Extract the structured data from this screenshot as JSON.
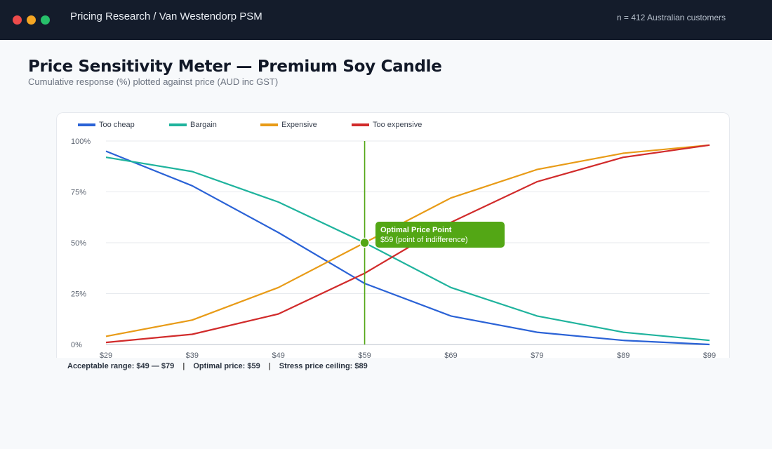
{
  "window": {
    "title": "Pricing Research / Van Westendorp PSM",
    "sample_note": "n = 412 Australian customers"
  },
  "page": {
    "title": "Price Sensitivity Meter — Premium Soy Candle",
    "subtitle": "Cumulative response (%) plotted against price (AUD inc GST)"
  },
  "chart_data": {
    "type": "line",
    "x": [
      29,
      39,
      49,
      59,
      69,
      79,
      89,
      99
    ],
    "x_tick_labels": [
      "$29",
      "$39",
      "$49",
      "$59",
      "$69",
      "$79",
      "$89",
      "$99"
    ],
    "xlim": [
      29,
      99
    ],
    "ylim": [
      0,
      100
    ],
    "y_tick_values": [
      0,
      25,
      50,
      75,
      100
    ],
    "y_tick_labels": [
      "0%",
      "25%",
      "50%",
      "75%",
      "100%"
    ],
    "grid": true,
    "legend_position": "top-left",
    "series": [
      {
        "name": "Too cheap",
        "color": "#2a62d6",
        "values": [
          95,
          78,
          55,
          30,
          14,
          6,
          2,
          0
        ]
      },
      {
        "name": "Bargain",
        "color": "#1fb39d",
        "values": [
          92,
          85,
          70,
          50,
          28,
          14,
          6,
          2
        ]
      },
      {
        "name": "Expensive",
        "color": "#e89b17",
        "values": [
          4,
          12,
          28,
          50,
          72,
          86,
          94,
          98
        ]
      },
      {
        "name": "Too expensive",
        "color": "#d12b2b",
        "values": [
          1,
          5,
          15,
          35,
          60,
          80,
          92,
          98
        ]
      }
    ],
    "marker": {
      "x": 59,
      "y": 50,
      "color": "#53a715"
    },
    "annotation": {
      "title": "Optimal Price Point",
      "text": "$59 (point of indifference)"
    }
  },
  "footer": {
    "acceptable_range": "Acceptable range: $49 — $79",
    "optimal_price": "Optimal price: $59",
    "stress_ceiling": "Stress price ceiling: $89",
    "separator": "|"
  }
}
